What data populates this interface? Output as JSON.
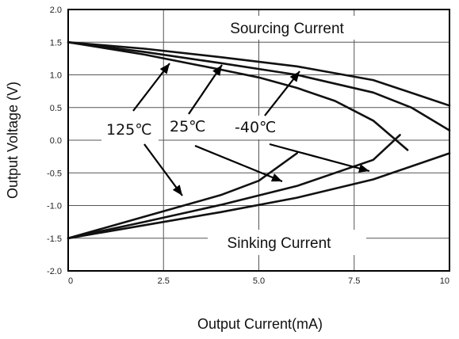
{
  "chart_data": {
    "type": "line",
    "xlabel": "Output Current(mA)",
    "ylabel": "Output Voltage (V)",
    "xlim": [
      0,
      10
    ],
    "ylim": [
      -2.0,
      2.0
    ],
    "x_ticks": [
      "0",
      "2.5",
      "5.0",
      "7.5",
      "10"
    ],
    "y_ticks": [
      "2.0",
      "1.5",
      "1.0",
      "0.5",
      "0.0",
      "-0.5",
      "-1.0",
      "-1.5",
      "-2.0"
    ],
    "grid": true,
    "series": [
      {
        "name": "125℃",
        "region": "Sourcing Current",
        "x": [
          0,
          2,
          4,
          5,
          6,
          7,
          8,
          8.6,
          8.9
        ],
        "y": [
          1.5,
          1.31,
          1.08,
          0.96,
          0.8,
          0.6,
          0.3,
          0.0,
          -0.15
        ]
      },
      {
        "name": "25℃",
        "region": "Sourcing Current",
        "x": [
          0,
          2,
          4,
          6,
          8,
          9,
          10
        ],
        "y": [
          1.5,
          1.35,
          1.18,
          1.0,
          0.73,
          0.5,
          0.15
        ]
      },
      {
        "name": "-40℃",
        "region": "Sourcing Current",
        "x": [
          0,
          2,
          4,
          6,
          8,
          10
        ],
        "y": [
          1.5,
          1.4,
          1.27,
          1.13,
          0.92,
          0.53
        ]
      },
      {
        "name": "125℃",
        "region": "Sinking Current",
        "x": [
          0,
          2,
          4,
          5,
          6
        ],
        "y": [
          -1.5,
          -1.17,
          -0.84,
          -0.62,
          -0.2
        ]
      },
      {
        "name": "25℃",
        "region": "Sinking Current",
        "x": [
          0,
          2,
          4,
          6,
          8,
          8.7
        ],
        "y": [
          -1.5,
          -1.25,
          -0.99,
          -0.7,
          -0.3,
          0.08
        ]
      },
      {
        "name": "-40℃",
        "region": "Sinking Current",
        "x": [
          0,
          2,
          4,
          6,
          8,
          10
        ],
        "y": [
          -1.5,
          -1.3,
          -1.1,
          -0.88,
          -0.6,
          -0.2
        ]
      }
    ],
    "annotations": {
      "sourcing_label": "Sourcing Current",
      "sinking_label": "Sinking Current",
      "temp_125": "125℃",
      "temp_25": "25℃",
      "temp_m40": "-40℃"
    }
  }
}
